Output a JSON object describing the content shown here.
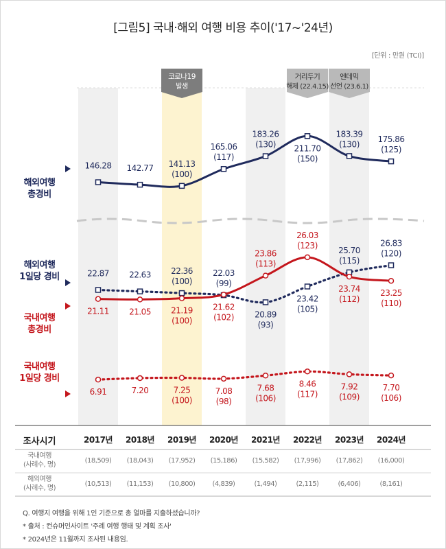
{
  "title": "[그림5] 국내·해외 여행 비용 추이('17~'24년)",
  "unit": "[단위 : 만원 (TCI)]",
  "annotations": [
    {
      "text": "코로나19 발생",
      "year": "2019년"
    },
    {
      "text": "거리두기 해제 (22.4.15)",
      "year": "2022년"
    },
    {
      "text": "엔데믹 선언 (23.6.1)",
      "year": "2023년"
    }
  ],
  "row_labels": {
    "overseas_total": [
      "해외여행",
      "총경비"
    ],
    "overseas_daily": [
      "해외여행",
      "1일당 경비"
    ],
    "domestic_total": [
      "국내여행",
      "총경비"
    ],
    "domestic_daily": [
      "국내여행",
      "1일당 경비"
    ]
  },
  "colors": {
    "navy": "#1f2a5c",
    "red": "#c4161c",
    "highlight": "#fdf3d0",
    "band": "#f0f0f0"
  },
  "table": {
    "header_label": "조사시기",
    "rows": [
      {
        "label": [
          "국내여행",
          "(사례수, 명)"
        ],
        "values": [
          "(18,509)",
          "(18,043)",
          "(17,952)",
          "(15,186)",
          "(15,582)",
          "(17,996)",
          "(17,862)",
          "(16,000)"
        ]
      },
      {
        "label": [
          "해외여행",
          "(사례수, 명)"
        ],
        "values": [
          "(10,513)",
          "(11,153)",
          "(10,800)",
          "(4,839)",
          "(1,494)",
          "(2,115)",
          "(6,406)",
          "(8,161)"
        ]
      }
    ]
  },
  "footnotes": [
    "Q. 여행지 여행을 위해 1인 기준으로 총 얼마를 지출하셨습니까?",
    "* 출처 : 컨슈머인사이트 '주례 여행 행태 및 계획 조사'",
    "* 2024년은 11월까지 조사된 내용임."
  ],
  "chart_data": {
    "type": "line",
    "categories": [
      "2017년",
      "2018년",
      "2019년",
      "2020년",
      "2021년",
      "2022년",
      "2023년",
      "2024년"
    ],
    "highlight_category": "2019년",
    "series": [
      {
        "name": "해외여행 총경비",
        "color": "#1f2a5c",
        "style": "solid",
        "values": [
          146.28,
          142.77,
          141.13,
          165.06,
          183.26,
          211.7,
          183.39,
          175.86
        ],
        "labels": [
          "146.28",
          "142.77",
          "141.13",
          "165.06",
          "183.26",
          "211.70",
          "183.39",
          "175.86"
        ],
        "index": [
          null,
          null,
          "(100)",
          "(117)",
          "(130)",
          "(150)",
          "(130)",
          "(125)"
        ],
        "label_pos": [
          "above",
          "above",
          "above",
          "above",
          "above",
          "below",
          "above",
          "above"
        ]
      },
      {
        "name": "해외여행 1일당 경비",
        "color": "#1f2a5c",
        "style": "dotted",
        "values": [
          22.87,
          22.63,
          22.36,
          22.03,
          20.89,
          23.42,
          25.7,
          26.83
        ],
        "labels": [
          "22.87",
          "22.63",
          "22.36",
          "22.03",
          "20.89",
          "23.42",
          "25.70",
          "26.83"
        ],
        "index": [
          null,
          null,
          "(100)",
          "(99)",
          "(93)",
          "(105)",
          "(115)",
          "(120)"
        ],
        "label_pos": [
          "above",
          "above",
          "above",
          "above",
          "below",
          "below",
          "above",
          "above"
        ]
      },
      {
        "name": "국내여행 총경비",
        "color": "#c4161c",
        "style": "solid",
        "values": [
          21.11,
          21.05,
          21.19,
          21.62,
          23.86,
          26.03,
          23.74,
          23.25
        ],
        "labels": [
          "21.11",
          "21.05",
          "21.19",
          "21.62",
          "23.86",
          "26.03",
          "23.74",
          "23.25"
        ],
        "index": [
          null,
          null,
          "(100)",
          "(102)",
          "(113)",
          "(123)",
          "(112)",
          "(110)"
        ],
        "label_pos": [
          "below",
          "below",
          "below",
          "below",
          "above",
          "above",
          "below",
          "below"
        ]
      },
      {
        "name": "국내여행 1일당 경비",
        "color": "#c4161c",
        "style": "dotted",
        "values": [
          6.91,
          7.2,
          7.25,
          7.08,
          7.68,
          8.46,
          7.92,
          7.7
        ],
        "labels": [
          "6.91",
          "7.20",
          "7.25",
          "7.08",
          "7.68",
          "8.46",
          "7.92",
          "7.70"
        ],
        "index": [
          null,
          null,
          "(100)",
          "(98)",
          "(106)",
          "(117)",
          "(109)",
          "(106)"
        ],
        "label_pos": [
          "below",
          "below",
          "below",
          "below",
          "below",
          "below",
          "below",
          "below"
        ]
      }
    ]
  }
}
